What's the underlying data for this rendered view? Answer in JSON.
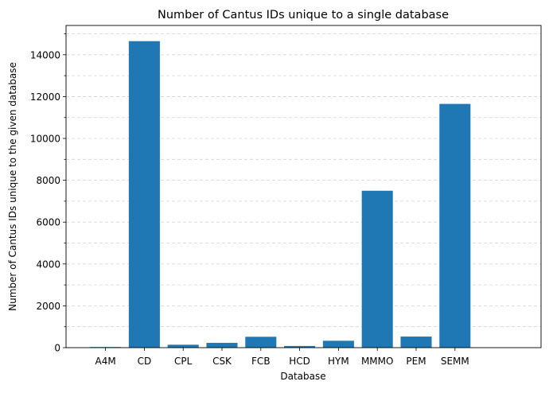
{
  "chart_data": {
    "type": "bar",
    "title": "Number of Cantus IDs unique to a single database",
    "xlabel": "Database",
    "ylabel": "Number of Cantus IDs unique to the given database",
    "categories": [
      "A4M",
      "CD",
      "CPL",
      "CSK",
      "FCB",
      "HCD",
      "HYM",
      "MMMO",
      "PEM",
      "SEMM"
    ],
    "values": [
      30,
      14650,
      140,
      230,
      520,
      80,
      330,
      7500,
      530,
      11650
    ],
    "ylim": [
      0,
      15400
    ],
    "yticks": [
      0,
      2000,
      4000,
      6000,
      8000,
      10000,
      12000,
      14000
    ],
    "ytick_labels": [
      "0",
      "2000",
      "4000",
      "6000",
      "8000",
      "10000",
      "12000",
      "14000"
    ],
    "minor_tick_step": 1000,
    "grid": "y-dashed-major-and-minor",
    "bar_color": "#1f77b4"
  }
}
